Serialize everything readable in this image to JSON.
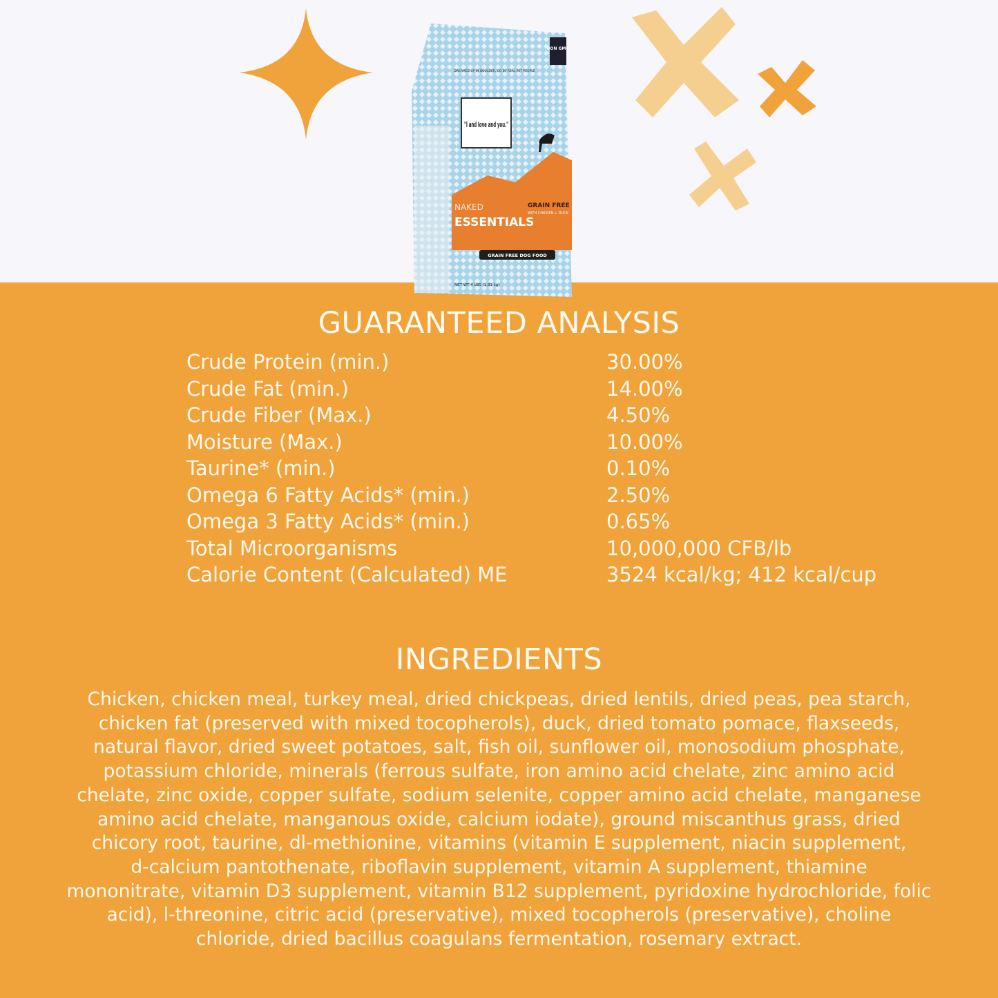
{
  "colors": {
    "background_top": "#f7f6fa",
    "background_bottom": "#f0a33a",
    "text": "#fffaf2",
    "sparkle": "#f0a33a",
    "cross_light": "#f5cf8f"
  },
  "product": {
    "brand": "\"I and love and you.\"",
    "tagline": "DREAMED UP IN BOULDER, CO BY REAL PET PEOPLE",
    "badge": "NON GMO",
    "line": "NAKED",
    "line2": "ESSENTIALS",
    "variant": "GRAIN FREE",
    "variant_sub": "WITH CHICKEN + DUCK",
    "banner": "GRAIN FREE DOG FOOD",
    "net_wt": "NET WT 4 LBS (1.81 kg)"
  },
  "analysis": {
    "title": "GUARANTEED ANALYSIS",
    "rows": [
      {
        "label": "Crude Protein (min.)",
        "value": "30.00%"
      },
      {
        "label": "Crude Fat (min.)",
        "value": "14.00%"
      },
      {
        "label": "Crude Fiber (Max.)",
        "value": "4.50%"
      },
      {
        "label": "Moisture (Max.)",
        "value": "10.00%"
      },
      {
        "label": "Taurine* (min.)",
        "value": "0.10%"
      },
      {
        "label": "Omega 6 Fatty Acids* (min.)",
        "value": "2.50%"
      },
      {
        "label": "Omega 3 Fatty Acids* (min.)",
        "value": "0.65%"
      },
      {
        "label": "Total Microorganisms",
        "value": "10,000,000 CFB/lb"
      },
      {
        "label": "Calorie Content (Calculated) ME",
        "value": "3524 kcal/kg; 412 kcal/cup"
      }
    ]
  },
  "ingredients": {
    "title": "INGREDIENTS",
    "lines": [
      "Chicken, chicken meal, turkey meal, dried chickpeas, dried lentils, dried peas, pea starch,",
      "chicken fat (preserved with mixed tocopherols), duck, dried tomato pomace, flaxseeds,",
      "natural flavor, dried sweet potatoes, salt, fish oil, sunflower oil, monosodium phosphate,",
      "potassium chloride, minerals (ferrous sulfate, iron amino acid chelate, zinc amino acid",
      "chelate, zinc oxide, copper sulfate, sodium selenite, copper amino acid chelate, manganese",
      "amino acid chelate, manganous oxide, calcium iodate), ground miscanthus grass, dried",
      "chicory root, taurine, dl-methionine, vitamins (vitamin E supplement, niacin supplement,",
      "d-calcium pantothenate, riboflavin supplement, vitamin A supplement, thiamine",
      "mononitrate, vitamin D3 supplement, vitamin B12 supplement, pyridoxine hydrochloride, folic",
      "acid), l-threonine, citric acid (preservative), mixed tocopherols (preservative), choline",
      "chloride, dried bacillus coagulans fermentation, rosemary extract."
    ]
  }
}
